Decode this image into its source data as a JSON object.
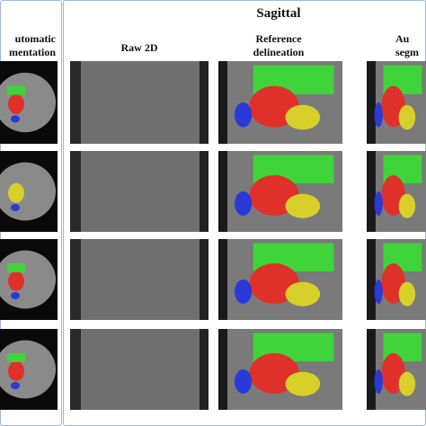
{
  "left_panel": {
    "header": [
      "utomatic",
      "mentation"
    ]
  },
  "right_panel": {
    "title": "Sagittal",
    "columns": [
      {
        "header": [
          "Raw 2D"
        ]
      },
      {
        "header": [
          "Reference",
          "delineation"
        ]
      },
      {
        "header": [
          "Au",
          "segm"
        ]
      }
    ]
  }
}
